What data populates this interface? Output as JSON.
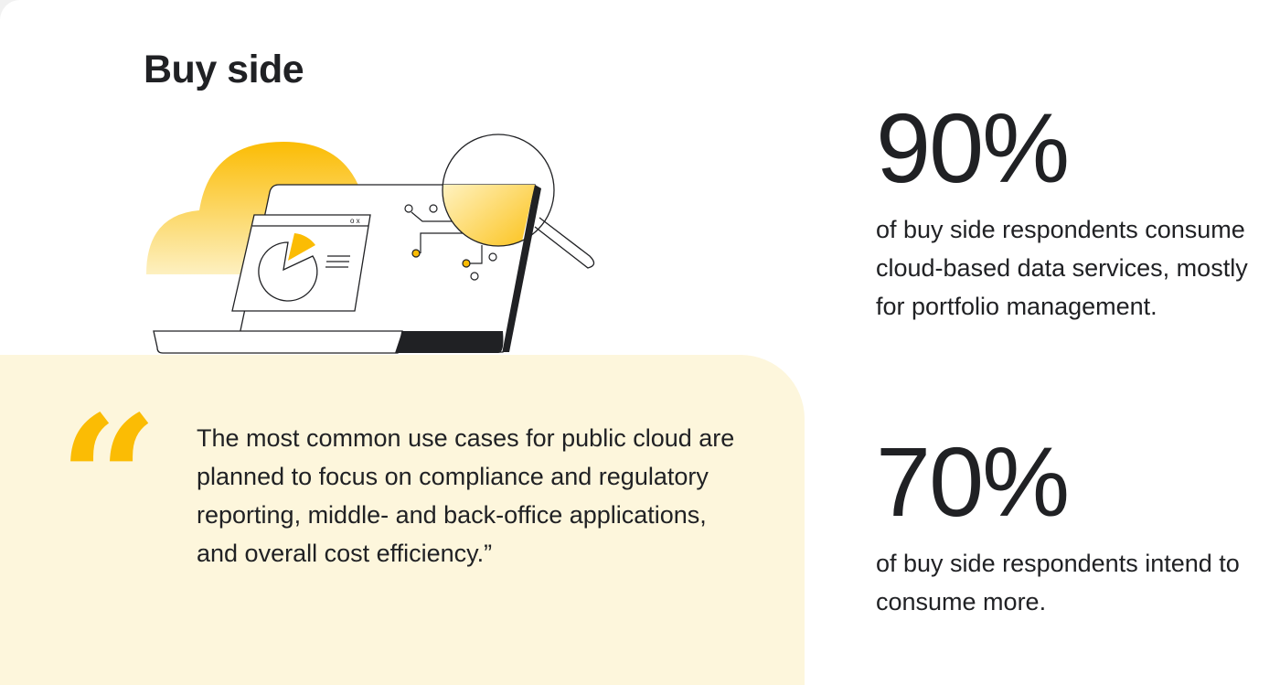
{
  "heading": "Buy side",
  "quote": {
    "mark": "“",
    "text": "The most common use cases for public cloud are planned to focus on compliance and regulatory reporting, middle- and back-office applications, and overall cost efficiency.”"
  },
  "stats": [
    {
      "value": "90%",
      "description": "of buy side respondents consume cloud-based data services, mostly for portfolio management."
    },
    {
      "value": "70%",
      "description": "of buy side respondents intend to consume more."
    }
  ],
  "colors": {
    "accent": "#fbbc04",
    "quote_background": "#fdf6dc",
    "text": "#202124"
  },
  "illustration": {
    "icons": [
      "cloud-icon",
      "laptop-icon",
      "pie-chart-window-icon",
      "magnifying-glass-icon"
    ]
  }
}
